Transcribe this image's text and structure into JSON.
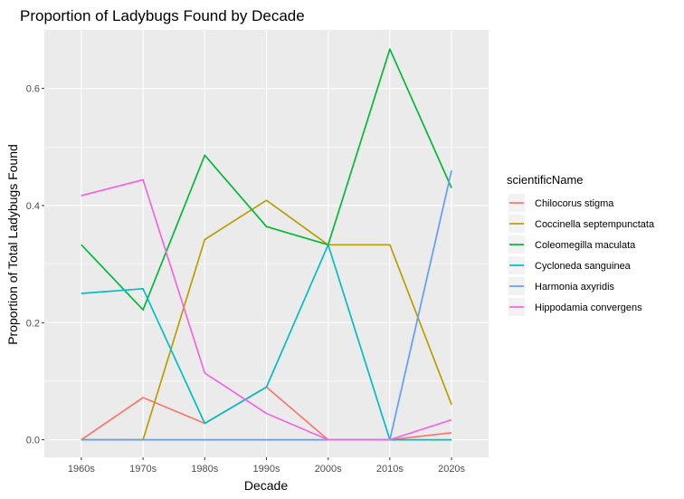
{
  "chart_data": {
    "type": "line",
    "title": "Proportion of Ladybugs Found by Decade",
    "xlabel": "Decade",
    "ylabel": "Proportion of Total Ladybugs Found",
    "categories": [
      "1960s",
      "1970s",
      "1980s",
      "1990s",
      "2000s",
      "2010s",
      "2020s"
    ],
    "ylim": [
      -0.03,
      0.7
    ],
    "yticks": [
      0.0,
      0.2,
      0.4,
      0.6
    ],
    "ytick_labels": [
      "0.0",
      "0.2",
      "0.4",
      "0.6"
    ],
    "grid": true,
    "legend_title": "scientificName",
    "legend_position": "right",
    "series": [
      {
        "name": "Chilocorus stigma",
        "color": "#F8766D",
        "values": [
          0.0,
          0.072,
          0.028,
          0.09,
          0.0,
          0.0,
          0.012
        ]
      },
      {
        "name": "Coccinella septempunctata",
        "color": "#B79F00",
        "values": [
          0.0,
          0.0,
          0.342,
          0.409,
          0.333,
          0.333,
          0.06
        ]
      },
      {
        "name": "Coleomegilla maculata",
        "color": "#00BA38",
        "values": [
          0.333,
          0.222,
          0.486,
          0.364,
          0.333,
          0.667,
          0.43
        ]
      },
      {
        "name": "Cycloneda sanguinea",
        "color": "#00BFC4",
        "values": [
          0.25,
          0.258,
          0.028,
          0.09,
          0.333,
          0.0,
          0.0
        ]
      },
      {
        "name": "Harmonia axyridis",
        "color": "#619CFF",
        "values": [
          0.0,
          0.0,
          0.0,
          0.0,
          0.0,
          0.0,
          0.46
        ]
      },
      {
        "name": "Hippodamia convergens",
        "color": "#F564E3",
        "values": [
          0.417,
          0.444,
          0.114,
          0.045,
          0.0,
          0.0,
          0.034
        ]
      }
    ]
  }
}
